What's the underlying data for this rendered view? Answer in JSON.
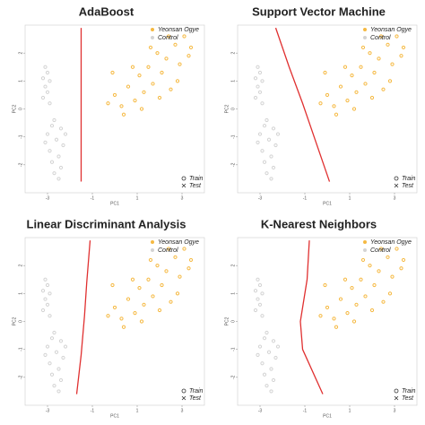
{
  "chart_data": [
    {
      "type": "scatter",
      "title": "AdaBoost",
      "x_label": "PC1",
      "y_label": "PC2",
      "xlim": [
        -4,
        4
      ],
      "ylim": [
        -3,
        3
      ],
      "xticks": [
        -3,
        -1,
        1,
        3
      ],
      "yticks": [
        -2,
        -1,
        0,
        1,
        2
      ],
      "series": [
        {
          "name": "Yeonsan Ogye",
          "color": "#f5b942",
          "x": [
            -0.3,
            0,
            0.3,
            0.6,
            0.9,
            1.1,
            1.3,
            1.5,
            1.7,
            1.9,
            2.1,
            2.3,
            2.5,
            2.7,
            2.9,
            3.1,
            3.3,
            0.4,
            0.8,
            1.2,
            1.6,
            2.0,
            2.4,
            2.8,
            3.4,
            -0.1
          ],
          "values": [
            0.2,
            0.5,
            0.1,
            0.8,
            0.3,
            1.2,
            0.6,
            1.5,
            0.9,
            2.0,
            1.3,
            1.8,
            0.7,
            2.3,
            1.6,
            2.6,
            1.9,
            -0.2,
            1.5,
            0.0,
            2.2,
            0.4,
            2.6,
            1.0,
            2.2,
            1.3
          ]
        },
        {
          "name": "Control",
          "color": "#d3d3d3",
          "x": [
            -3.1,
            -3,
            -3.2,
            -2.9,
            -3.1,
            -3,
            -3.2,
            -2.9,
            -2.7,
            -2.4,
            -3,
            -2.6,
            -2.3,
            -2.9,
            -2.5,
            -2.8,
            -2.4,
            -2.7,
            -2.5,
            -3.1,
            -2.2,
            -2.8
          ],
          "values": [
            1.5,
            1.3,
            1.1,
            1,
            0.8,
            0.6,
            0.4,
            0.2,
            -0.4,
            -0.7,
            -0.9,
            -1.1,
            -1.3,
            -1.5,
            -1.7,
            -1.9,
            -2.1,
            -2.3,
            -2.5,
            -1.2,
            -0.9,
            -0.6
          ]
        }
      ],
      "decision_boundary": {
        "color": "#e03030",
        "x": [
          -1.5,
          -1.5
        ],
        "values": [
          2.9,
          -2.6
        ]
      },
      "shape_legend": [
        "Train",
        "Test"
      ]
    },
    {
      "type": "scatter",
      "title": "Support Vector Machine",
      "x_label": "PC1",
      "y_label": "PC2",
      "xlim": [
        -4,
        4
      ],
      "ylim": [
        -3,
        3
      ],
      "xticks": [
        -3,
        -1,
        1,
        3
      ],
      "yticks": [
        -2,
        -1,
        0,
        1,
        2
      ],
      "series": [
        {
          "name": "Yeonsan Ogye",
          "color": "#f5b942",
          "x": [
            -0.3,
            0,
            0.3,
            0.6,
            0.9,
            1.1,
            1.3,
            1.5,
            1.7,
            1.9,
            2.1,
            2.3,
            2.5,
            2.7,
            2.9,
            3.1,
            3.3,
            0.4,
            0.8,
            1.2,
            1.6,
            2.0,
            2.4,
            2.8,
            3.4,
            -0.1
          ],
          "values": [
            0.2,
            0.5,
            0.1,
            0.8,
            0.3,
            1.2,
            0.6,
            1.5,
            0.9,
            2.0,
            1.3,
            1.8,
            0.7,
            2.3,
            1.6,
            2.6,
            1.9,
            -0.2,
            1.5,
            0.0,
            2.2,
            0.4,
            2.6,
            1.0,
            2.2,
            1.3
          ]
        },
        {
          "name": "Control",
          "color": "#d3d3d3",
          "x": [
            -3.1,
            -3,
            -3.2,
            -2.9,
            -3.1,
            -3,
            -3.2,
            -2.9,
            -2.7,
            -2.4,
            -3,
            -2.6,
            -2.3,
            -2.9,
            -2.5,
            -2.8,
            -2.4,
            -2.7,
            -2.5,
            -3.1,
            -2.2,
            -2.8
          ],
          "values": [
            1.5,
            1.3,
            1.1,
            1,
            0.8,
            0.6,
            0.4,
            0.2,
            -0.4,
            -0.7,
            -0.9,
            -1.1,
            -1.3,
            -1.5,
            -1.7,
            -1.9,
            -2.1,
            -2.3,
            -2.5,
            -1.2,
            -0.9,
            -0.6
          ]
        }
      ],
      "decision_boundary": {
        "color": "#e03030",
        "x": [
          -2.3,
          -1.7,
          -1.1,
          -0.5,
          0.1
        ],
        "values": [
          2.9,
          1.5,
          0.2,
          -1.2,
          -2.6
        ]
      },
      "shape_legend": [
        "Train",
        "Test"
      ]
    },
    {
      "type": "scatter",
      "title": "Linear Discriminant Analysis",
      "x_label": "PC1",
      "y_label": "PC2",
      "xlim": [
        -4,
        4
      ],
      "ylim": [
        -3,
        3
      ],
      "xticks": [
        -3,
        -1,
        1,
        3
      ],
      "yticks": [
        -2,
        -1,
        0,
        1,
        2
      ],
      "series": [
        {
          "name": "Yeonsan Ogye",
          "color": "#f5b942",
          "x": [
            -0.3,
            0,
            0.3,
            0.6,
            0.9,
            1.1,
            1.3,
            1.5,
            1.7,
            1.9,
            2.1,
            2.3,
            2.5,
            2.7,
            2.9,
            3.1,
            3.3,
            0.4,
            0.8,
            1.2,
            1.6,
            2.0,
            2.4,
            2.8,
            3.4,
            -0.1
          ],
          "values": [
            0.2,
            0.5,
            0.1,
            0.8,
            0.3,
            1.2,
            0.6,
            1.5,
            0.9,
            2.0,
            1.3,
            1.8,
            0.7,
            2.3,
            1.6,
            2.6,
            1.9,
            -0.2,
            1.5,
            0.0,
            2.2,
            0.4,
            2.6,
            1.0,
            2.2,
            1.3
          ]
        },
        {
          "name": "Control",
          "color": "#d3d3d3",
          "x": [
            -3.1,
            -3,
            -3.2,
            -2.9,
            -3.1,
            -3,
            -3.2,
            -2.9,
            -2.7,
            -2.4,
            -3,
            -2.6,
            -2.3,
            -2.9,
            -2.5,
            -2.8,
            -2.4,
            -2.7,
            -2.5,
            -3.1,
            -2.2,
            -2.8
          ],
          "values": [
            1.5,
            1.3,
            1.1,
            1,
            0.8,
            0.6,
            0.4,
            0.2,
            -0.4,
            -0.7,
            -0.9,
            -1.1,
            -1.3,
            -1.5,
            -1.7,
            -1.9,
            -2.1,
            -2.3,
            -2.5,
            -1.2,
            -0.9,
            -0.6
          ]
        }
      ],
      "decision_boundary": {
        "color": "#e03030",
        "x": [
          -1.1,
          -1.25,
          -1.35,
          -1.5,
          -1.7
        ],
        "values": [
          2.9,
          1.4,
          0.2,
          -1.2,
          -2.6
        ]
      },
      "shape_legend": [
        "Train",
        "Test"
      ]
    },
    {
      "type": "scatter",
      "title": "K-Nearest Neighbors",
      "x_label": "PC1",
      "y_label": "PC2",
      "xlim": [
        -4,
        4
      ],
      "ylim": [
        -3,
        3
      ],
      "xticks": [
        -3,
        -1,
        1,
        3
      ],
      "yticks": [
        -2,
        -1,
        0,
        1,
        2
      ],
      "series": [
        {
          "name": "Yeonsan Ogye",
          "color": "#f5b942",
          "x": [
            -0.3,
            0,
            0.3,
            0.6,
            0.9,
            1.1,
            1.3,
            1.5,
            1.7,
            1.9,
            2.1,
            2.3,
            2.5,
            2.7,
            2.9,
            3.1,
            3.3,
            0.4,
            0.8,
            1.2,
            1.6,
            2.0,
            2.4,
            2.8,
            3.4,
            -0.1
          ],
          "values": [
            0.2,
            0.5,
            0.1,
            0.8,
            0.3,
            1.2,
            0.6,
            1.5,
            0.9,
            2.0,
            1.3,
            1.8,
            0.7,
            2.3,
            1.6,
            2.6,
            1.9,
            -0.2,
            1.5,
            0.0,
            2.2,
            0.4,
            2.6,
            1.0,
            2.2,
            1.3
          ]
        },
        {
          "name": "Control",
          "color": "#d3d3d3",
          "x": [
            -3.1,
            -3,
            -3.2,
            -2.9,
            -3.1,
            -3,
            -3.2,
            -2.9,
            -2.7,
            -2.4,
            -3,
            -2.6,
            -2.3,
            -2.9,
            -2.5,
            -2.8,
            -2.4,
            -2.7,
            -2.5,
            -3.1,
            -2.2,
            -2.8
          ],
          "values": [
            1.5,
            1.3,
            1.1,
            1,
            0.8,
            0.6,
            0.4,
            0.2,
            -0.4,
            -0.7,
            -0.9,
            -1.1,
            -1.3,
            -1.5,
            -1.7,
            -1.9,
            -2.1,
            -2.3,
            -2.5,
            -1.2,
            -0.9,
            -0.6
          ]
        }
      ],
      "decision_boundary": {
        "color": "#e03030",
        "x": [
          -0.8,
          -0.9,
          -1.2,
          -1.1,
          -0.2
        ],
        "values": [
          2.9,
          1.5,
          0.0,
          -1.0,
          -2.6
        ]
      },
      "shape_legend": [
        "Train",
        "Test"
      ]
    }
  ]
}
